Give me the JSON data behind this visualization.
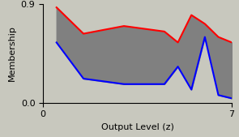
{
  "x": [
    0.5,
    1.5,
    3.0,
    4.5,
    5.0,
    5.5,
    6.0,
    6.5,
    7.0
  ],
  "upper": [
    0.87,
    0.63,
    0.7,
    0.65,
    0.55,
    0.8,
    0.72,
    0.6,
    0.55
  ],
  "lower": [
    0.55,
    0.22,
    0.17,
    0.17,
    0.33,
    0.12,
    0.6,
    0.07,
    0.04
  ],
  "fill_color": "#808080",
  "upper_color": "#ff0000",
  "lower_color": "#0000ff",
  "line_width": 1.5,
  "xlabel": "Output Level (z)",
  "ylabel": "Membership",
  "xlim": [
    0,
    7
  ],
  "ylim": [
    0,
    0.9
  ],
  "yticks": [
    0,
    0.9
  ],
  "xticks": [
    0,
    7
  ],
  "background_color": "#c8c8be",
  "title": ""
}
